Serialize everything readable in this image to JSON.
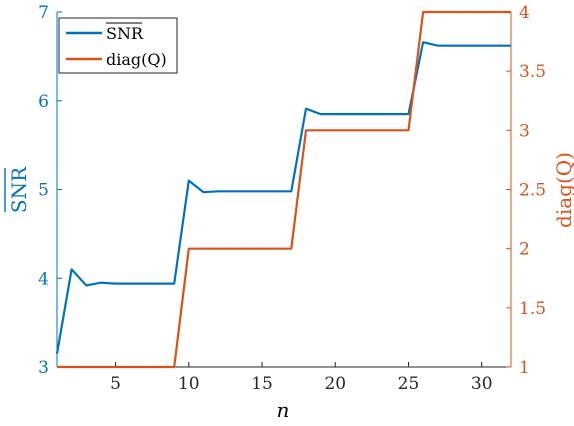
{
  "chart_data": {
    "type": "line",
    "xlabel": "n",
    "ylabel_left": "SNR",
    "ylabel_right": "diag(Q)",
    "xlim": [
      1,
      32
    ],
    "ylim_left": [
      3,
      7
    ],
    "ylim_right": [
      1,
      4
    ],
    "xticks": [
      5,
      10,
      15,
      20,
      25,
      30
    ],
    "yticks_left": [
      3,
      4,
      5,
      6,
      7
    ],
    "yticks_right": [
      1,
      1.5,
      2,
      2.5,
      3,
      3.5,
      4
    ],
    "grid": false,
    "legend_position": "top-left",
    "colors": {
      "left_axis": "#0072BD",
      "right_axis": "#D95319"
    },
    "series": [
      {
        "name": "SNR",
        "axis": "left",
        "color": "#0072BD",
        "x": [
          1,
          2,
          3,
          4,
          5,
          6,
          7,
          8,
          9,
          10,
          11,
          12,
          13,
          14,
          15,
          16,
          17,
          18,
          19,
          20,
          21,
          22,
          23,
          24,
          25,
          26,
          27,
          28,
          29,
          30,
          31,
          32
        ],
        "y": [
          3.15,
          4.1,
          3.92,
          3.95,
          3.94,
          3.94,
          3.94,
          3.94,
          3.94,
          5.1,
          4.97,
          4.98,
          4.98,
          4.98,
          4.98,
          4.98,
          4.98,
          5.91,
          5.85,
          5.85,
          5.85,
          5.85,
          5.85,
          5.85,
          5.85,
          6.66,
          6.62,
          6.62,
          6.62,
          6.62,
          6.62,
          6.62
        ]
      },
      {
        "name": "diag(Q)",
        "axis": "right",
        "color": "#D95319",
        "x": [
          1,
          2,
          3,
          4,
          5,
          6,
          7,
          8,
          9,
          10,
          11,
          12,
          13,
          14,
          15,
          16,
          17,
          18,
          19,
          20,
          21,
          22,
          23,
          24,
          25,
          26,
          27,
          28,
          29,
          30,
          31,
          32
        ],
        "y": [
          1,
          1,
          1,
          1,
          1,
          1,
          1,
          1,
          1,
          2,
          2,
          2,
          2,
          2,
          2,
          2,
          2,
          3,
          3,
          3,
          3,
          3,
          3,
          3,
          3,
          4,
          4,
          4,
          4,
          4,
          4,
          4
        ]
      }
    ]
  }
}
